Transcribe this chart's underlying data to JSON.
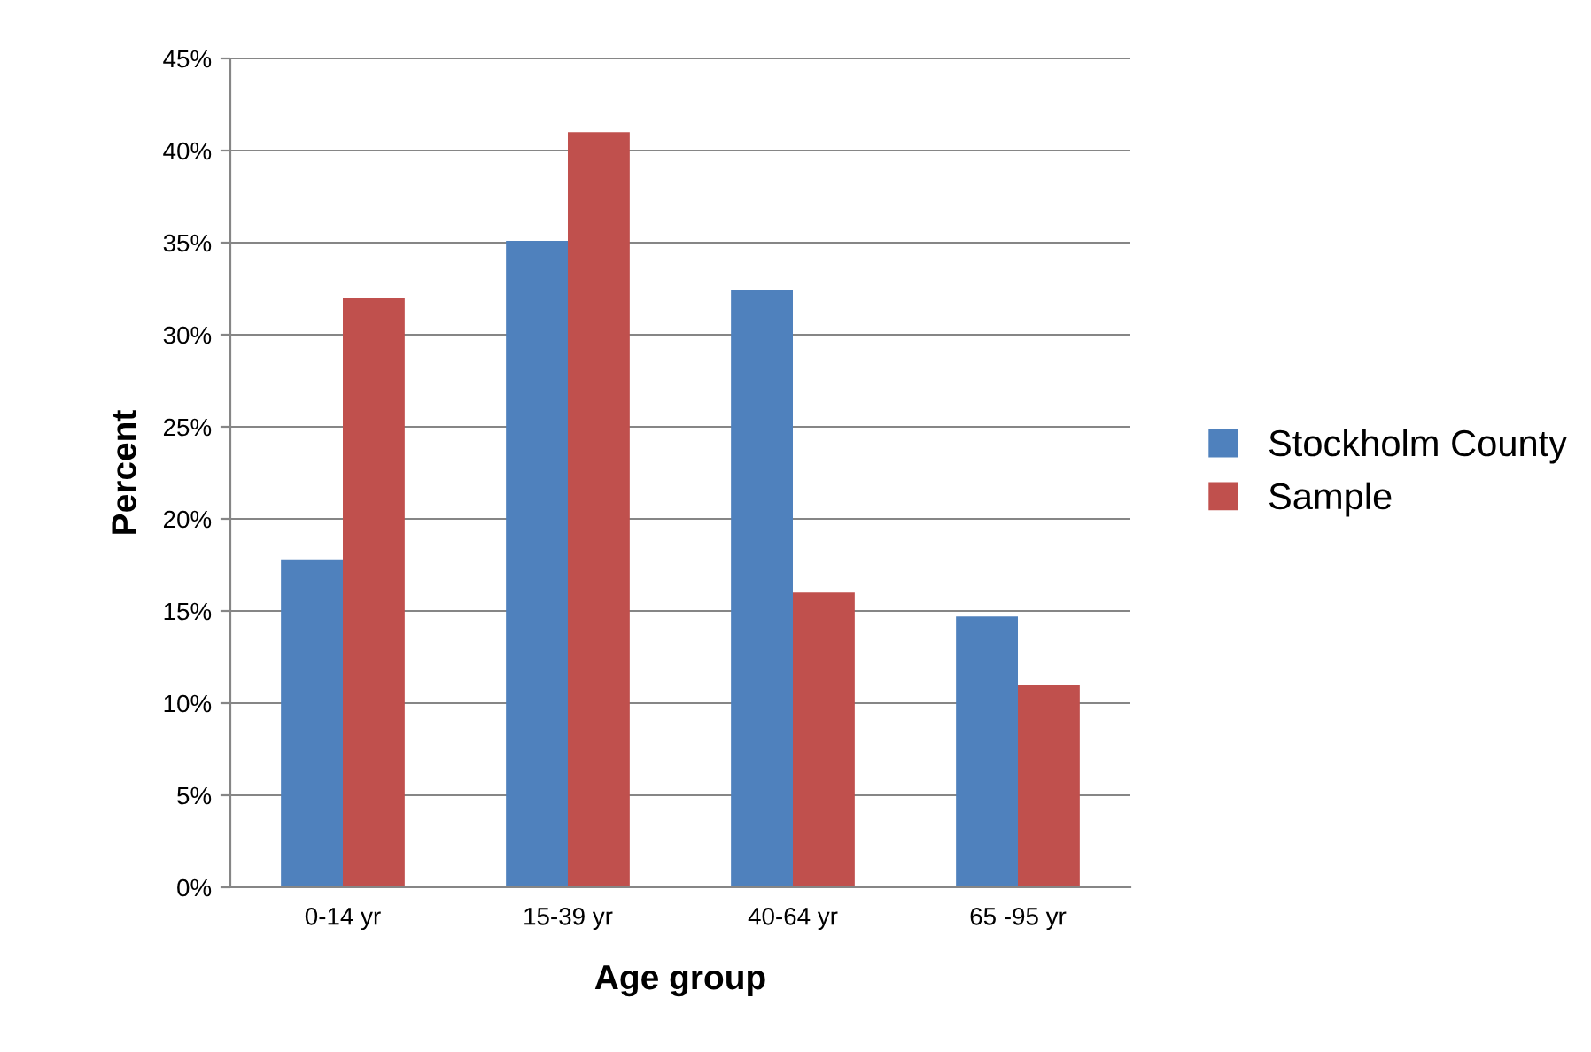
{
  "chart_data": {
    "type": "bar",
    "xlabel": "Age group",
    "ylabel": "Percent",
    "categories": [
      "0-14 yr",
      "15-39 yr",
      "40-64 yr",
      "65 -95 yr"
    ],
    "series": [
      {
        "name": "Stockholm County",
        "color": "#4f81bd",
        "values": [
          17.8,
          35.1,
          32.4,
          14.7
        ]
      },
      {
        "name": "Sample",
        "color": "#c0504d",
        "values": [
          32,
          41,
          16,
          11
        ]
      }
    ],
    "ylim": [
      0,
      45
    ],
    "yticks": [
      {
        "value": 0,
        "label": "0%"
      },
      {
        "value": 5,
        "label": "5%"
      },
      {
        "value": 10,
        "label": "10%"
      },
      {
        "value": 15,
        "label": "15%"
      },
      {
        "value": 20,
        "label": "20%"
      },
      {
        "value": 25,
        "label": "25%"
      },
      {
        "value": 30,
        "label": "30%"
      },
      {
        "value": 35,
        "label": "35%"
      },
      {
        "value": 40,
        "label": "40%"
      },
      {
        "value": 45,
        "label": "45%"
      }
    ],
    "grid": "y",
    "legend": "right"
  }
}
